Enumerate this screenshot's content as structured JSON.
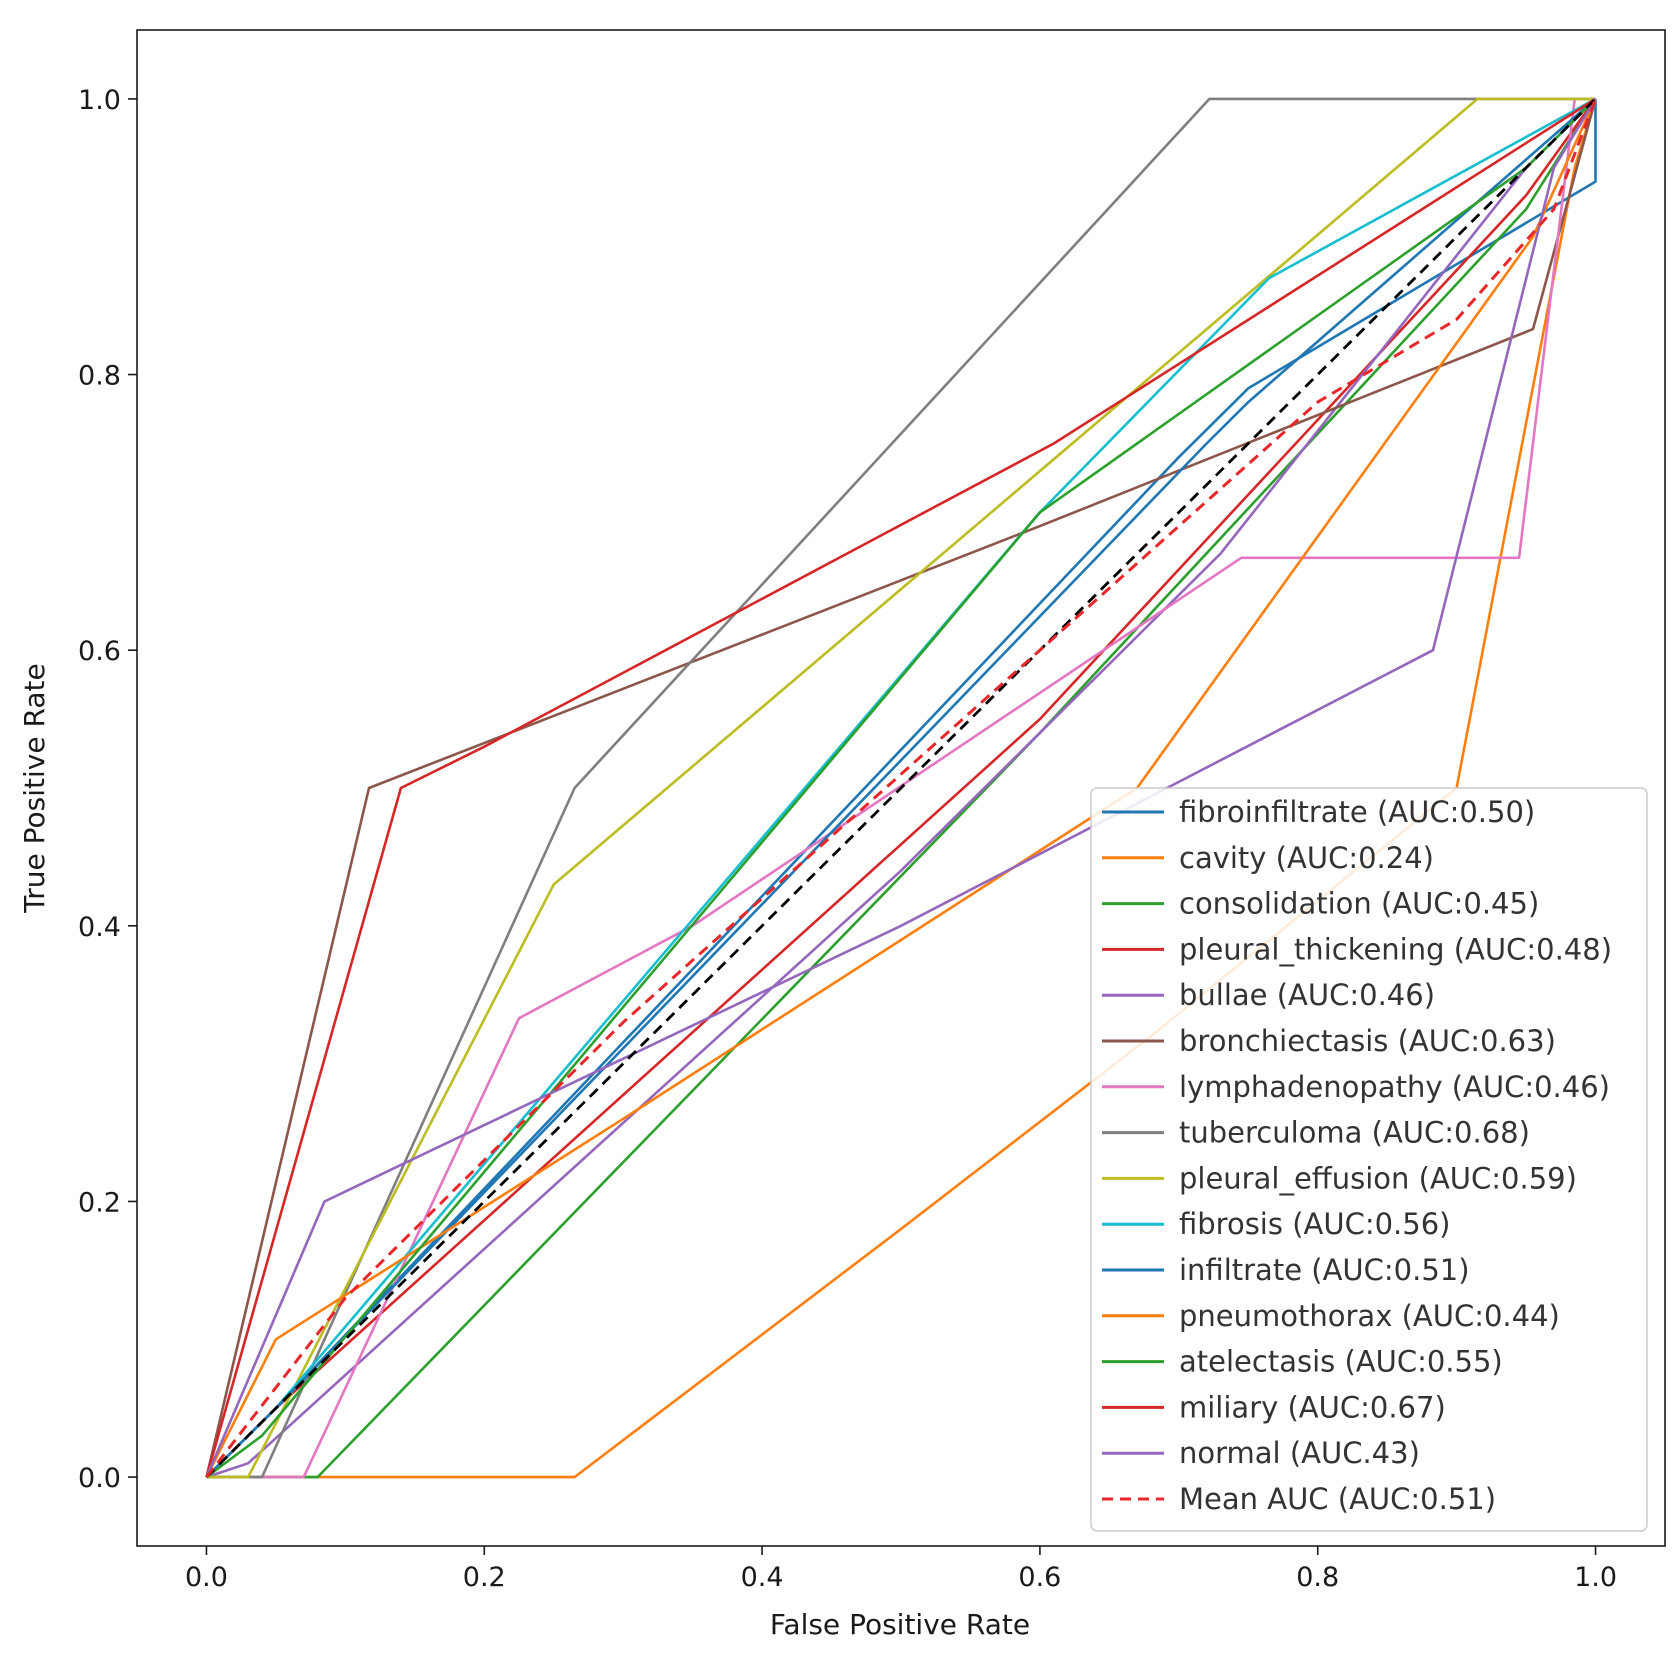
{
  "chart_data": {
    "type": "line",
    "title": "",
    "xlabel": "False Positive Rate",
    "ylabel": "True Positive Rate",
    "xlim": [
      -0.05,
      1.05
    ],
    "ylim": [
      -0.05,
      1.05
    ],
    "xticks": [
      0.0,
      0.2,
      0.4,
      0.6,
      0.8,
      1.0
    ],
    "yticks": [
      0.0,
      0.2,
      0.4,
      0.6,
      0.8,
      1.0
    ],
    "xtick_labels": [
      "0.0",
      "0.2",
      "0.4",
      "0.6",
      "0.8",
      "1.0"
    ],
    "ytick_labels": [
      "0.0",
      "0.2",
      "0.4",
      "0.6",
      "0.8",
      "1.0"
    ],
    "grid": false,
    "legend_position": "lower-right",
    "series": [
      {
        "name": "fibroinfiltrate (AUC:0.50)",
        "color": "#1f77b4",
        "dash": "solid",
        "x": [
          0,
          0.05,
          0.7,
          0.75,
          1.0,
          1.0,
          1.0
        ],
        "y": [
          0,
          0.05,
          0.74,
          0.79,
          0.94,
          0.97,
          1.0
        ]
      },
      {
        "name": "cavity (AUC:0.24)",
        "color": "#ff7f0e",
        "dash": "solid",
        "x": [
          0,
          0.265,
          0.5,
          0.68,
          0.9,
          0.985,
          1.0
        ],
        "y": [
          0,
          0,
          0.18,
          0.32,
          0.5,
          0.95,
          1.0
        ]
      },
      {
        "name": "consolidation (AUC:0.45)",
        "color": "#2ca02c",
        "dash": "solid",
        "x": [
          0,
          0.08,
          0.6,
          0.95,
          1.0
        ],
        "y": [
          0,
          0.0,
          0.54,
          0.92,
          1.0
        ]
      },
      {
        "name": "pleural_thickening (AUC:0.48)",
        "color": "#d62728",
        "dash": "solid",
        "x": [
          0,
          0.05,
          0.6,
          0.95,
          1.0
        ],
        "y": [
          0,
          0.05,
          0.55,
          0.93,
          1.0
        ]
      },
      {
        "name": "bullae (AUC:0.46)",
        "color": "#9467bd",
        "dash": "solid",
        "x": [
          0,
          0.03,
          0.5,
          0.73,
          0.95,
          1.0
        ],
        "y": [
          0,
          0.01,
          0.44,
          0.67,
          0.95,
          1.0
        ]
      },
      {
        "name": "bronchiectasis (AUC:0.63)",
        "color": "#8c564b",
        "dash": "solid",
        "x": [
          0,
          0.117,
          0.6,
          0.955,
          1.0
        ],
        "y": [
          0,
          0.5,
          0.69,
          0.833,
          1.0
        ]
      },
      {
        "name": "lymphadenopathy (AUC:0.46)",
        "color": "#e377c2",
        "dash": "solid",
        "x": [
          0,
          0.07,
          0.225,
          0.35,
          0.745,
          0.945,
          0.985,
          1.0
        ],
        "y": [
          0,
          0,
          0.333,
          0.4,
          0.667,
          0.667,
          1.0,
          1.0
        ]
      },
      {
        "name": "tuberculoma (AUC:0.68)",
        "color": "#7f7f7f",
        "dash": "solid",
        "x": [
          0,
          0.04,
          0.265,
          0.722,
          1.0
        ],
        "y": [
          0,
          0,
          0.5,
          1.0,
          1.0
        ]
      },
      {
        "name": "pleural_effusion (AUC:0.59)",
        "color": "#bcbd22",
        "dash": "solid",
        "x": [
          0,
          0.03,
          0.25,
          0.915,
          1.0
        ],
        "y": [
          0,
          0,
          0.43,
          1.0,
          1.0
        ]
      },
      {
        "name": "fibrosis (AUC:0.56)",
        "color": "#17becf",
        "dash": "solid",
        "x": [
          0,
          0.05,
          0.6,
          0.765,
          1.0
        ],
        "y": [
          0,
          0.05,
          0.7,
          0.87,
          1.0
        ]
      },
      {
        "name": "infiltrate (AUC:0.51)",
        "color": "#1f77b4",
        "dash": "solid",
        "x": [
          0,
          0.05,
          0.72,
          0.75,
          1.0
        ],
        "y": [
          0,
          0.05,
          0.75,
          0.78,
          1.0
        ]
      },
      {
        "name": "pneumothorax (AUC:0.44)",
        "color": "#ff7f0e",
        "dash": "solid",
        "x": [
          0,
          0.05,
          0.3,
          0.67,
          0.955,
          1.0
        ],
        "y": [
          0,
          0.1,
          0.26,
          0.5,
          0.9,
          1.0
        ]
      },
      {
        "name": "atelectasis (AUC:0.55)",
        "color": "#2ca02c",
        "dash": "solid",
        "x": [
          0,
          0.04,
          0.6,
          0.95,
          1.0
        ],
        "y": [
          0,
          0.03,
          0.7,
          0.95,
          1.0
        ]
      },
      {
        "name": "miliary (AUC:0.67)",
        "color": "#d62728",
        "dash": "solid",
        "x": [
          0,
          0.14,
          0.2,
          0.61,
          1.0
        ],
        "y": [
          0,
          0.5,
          0.53,
          0.75,
          1.0
        ]
      },
      {
        "name": "normal (AUC.43)",
        "color": "#9467bd",
        "dash": "solid",
        "x": [
          0,
          0.085,
          0.5,
          0.883,
          0.97,
          1.0
        ],
        "y": [
          0,
          0.2,
          0.4,
          0.6,
          0.95,
          1.0
        ]
      },
      {
        "name": "Mean AUC (AUC:0.51)",
        "color": "#e8272b",
        "dash": "dashed",
        "x": [
          0,
          0.1,
          0.3,
          0.6,
          0.8,
          0.9,
          0.97,
          1.0
        ],
        "y": [
          0,
          0.13,
          0.33,
          0.6,
          0.78,
          0.84,
          0.92,
          1.0
        ]
      }
    ],
    "reference_line": {
      "color": "#000000",
      "dash": "dashed",
      "x": [
        0,
        1
      ],
      "y": [
        0,
        1
      ]
    }
  }
}
